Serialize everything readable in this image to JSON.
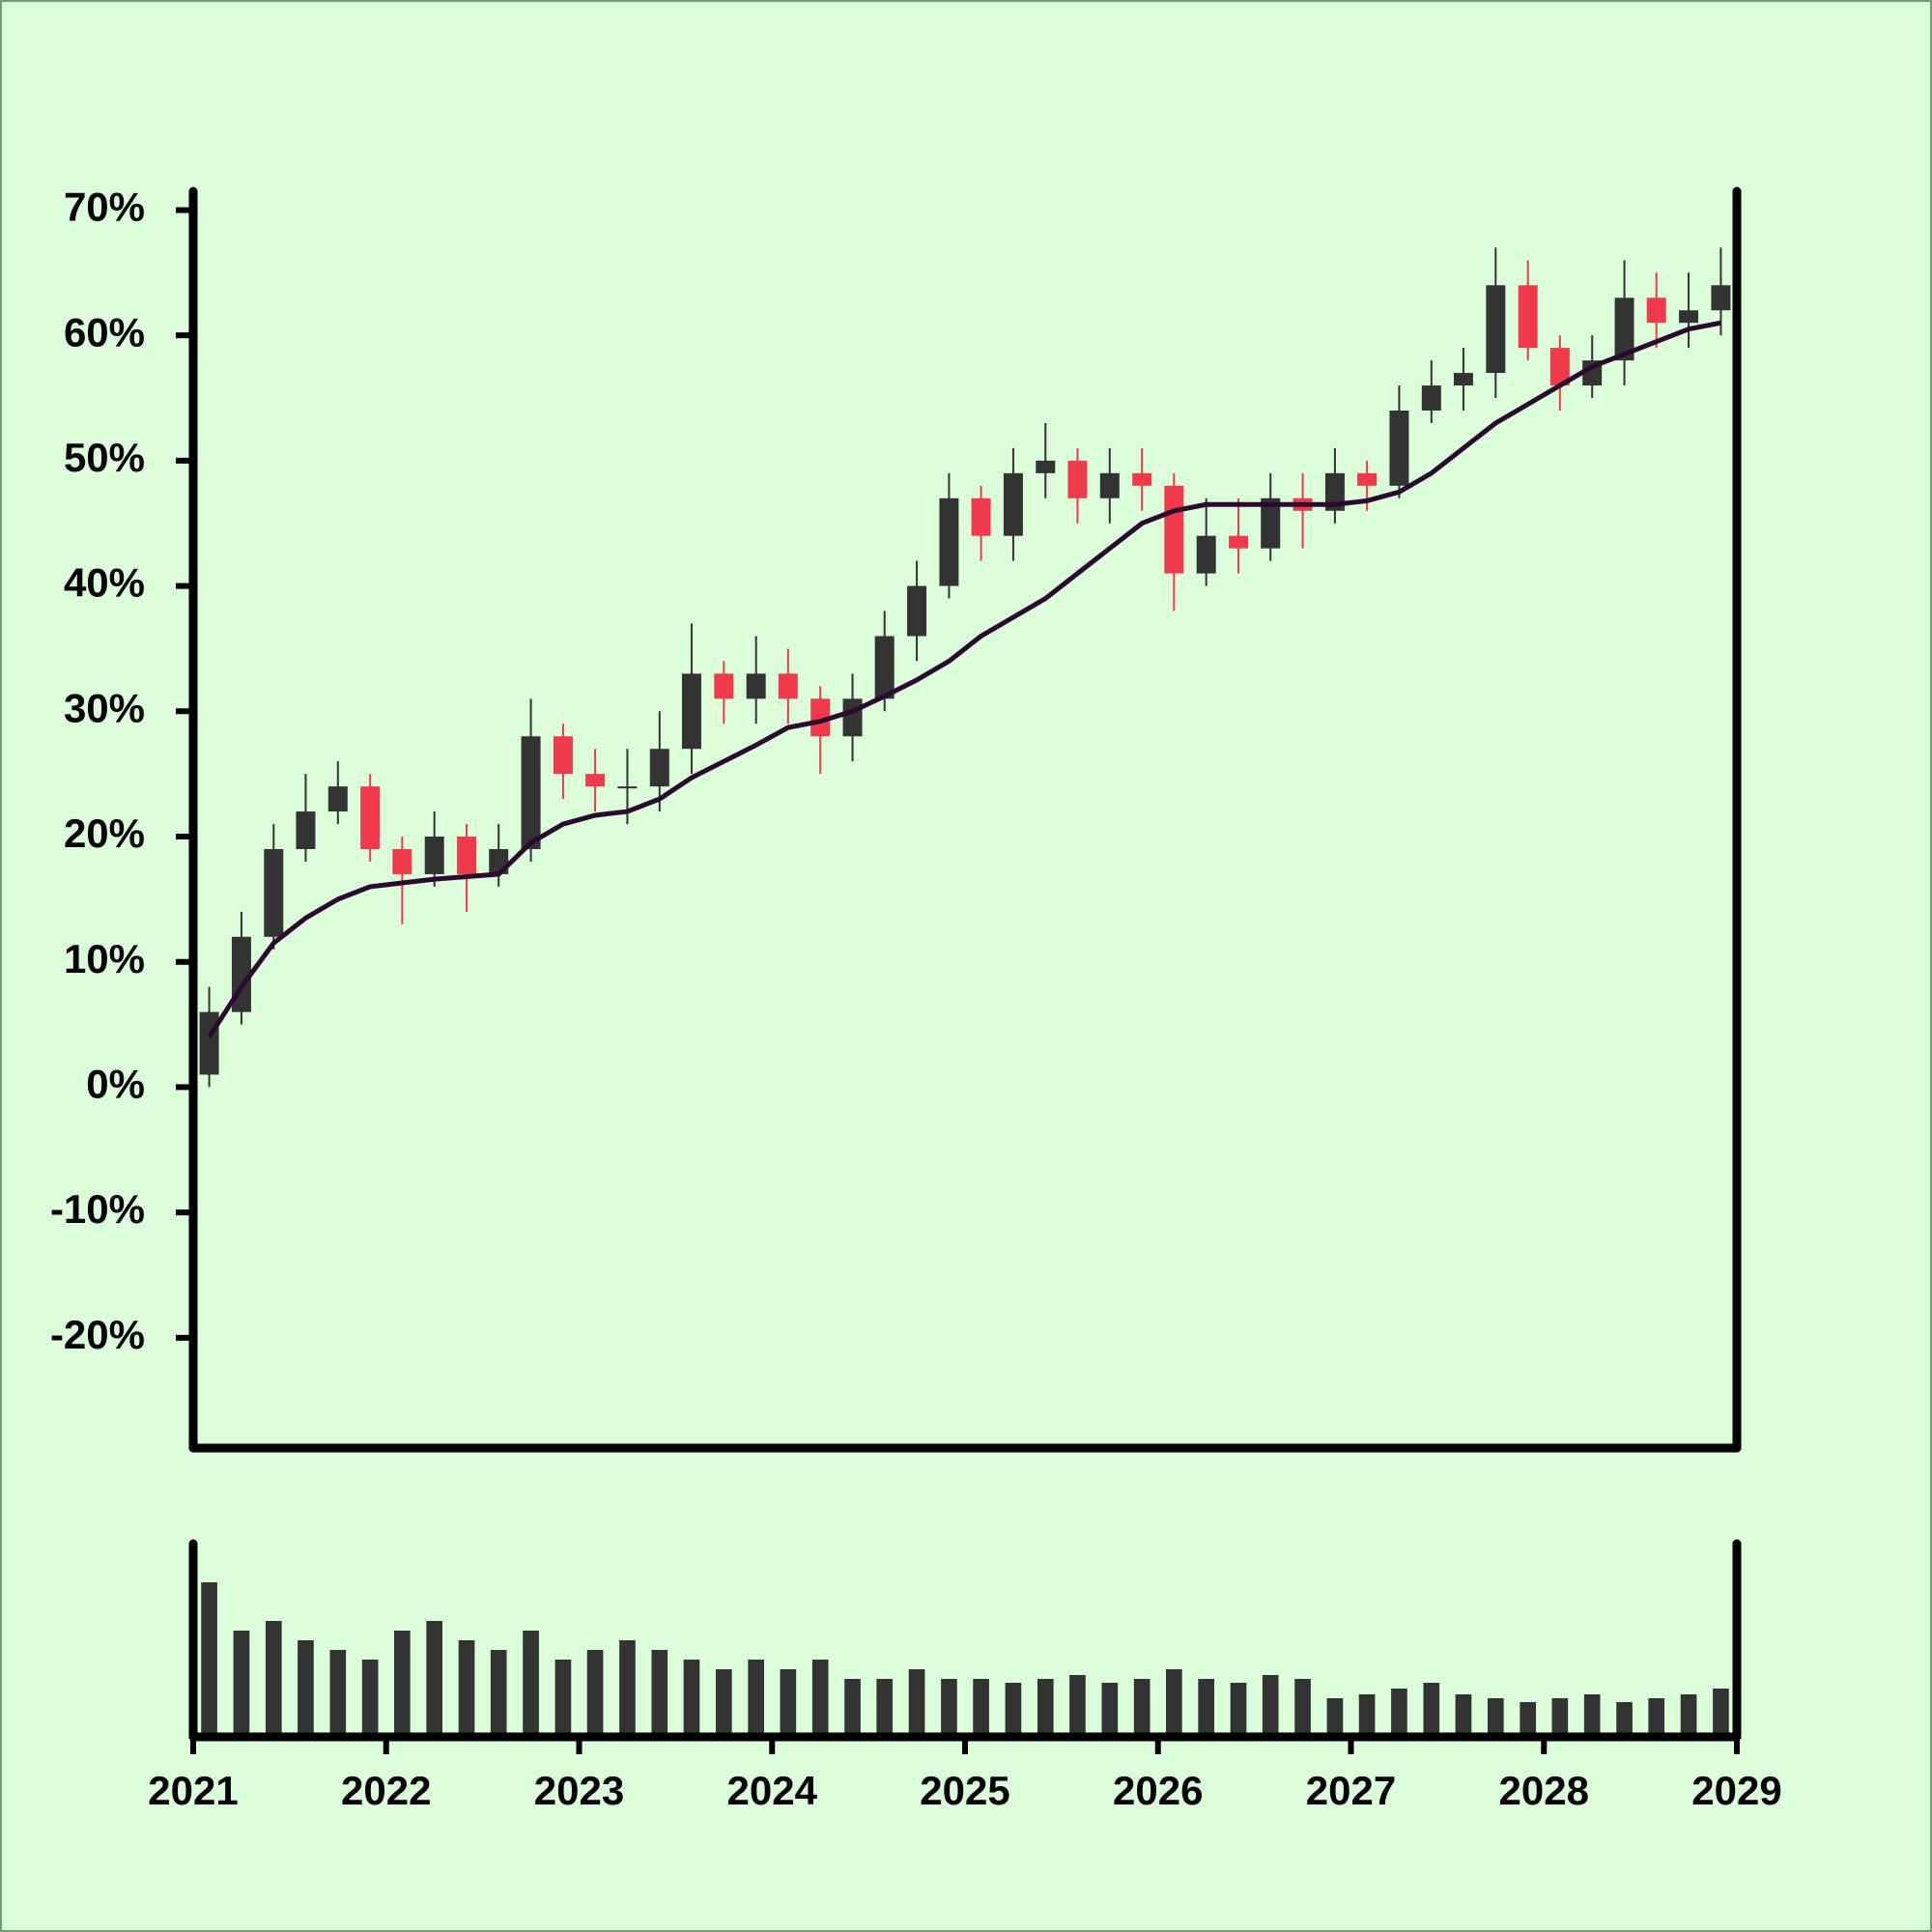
{
  "chart_data": {
    "type": "candlestick",
    "x": [
      2021.083,
      2021.25,
      2021.417,
      2021.583,
      2021.75,
      2021.917,
      2022.083,
      2022.25,
      2022.417,
      2022.583,
      2022.75,
      2022.917,
      2023.083,
      2023.25,
      2023.417,
      2023.583,
      2023.75,
      2023.917,
      2024.083,
      2024.25,
      2024.417,
      2024.583,
      2024.75,
      2024.917,
      2025.083,
      2025.25,
      2025.417,
      2025.583,
      2025.75,
      2025.917,
      2026.083,
      2026.25,
      2026.417,
      2026.583,
      2026.75,
      2026.917,
      2027.083,
      2027.25,
      2027.417,
      2027.583,
      2027.75,
      2027.917,
      2028.083,
      2028.25,
      2028.417,
      2028.583,
      2028.75,
      2028.917
    ],
    "open": [
      1,
      6,
      12,
      19,
      22,
      24,
      19,
      17,
      20,
      17,
      19,
      28,
      25,
      24,
      24,
      27,
      33,
      31,
      33,
      31,
      28,
      31,
      36,
      40,
      47,
      44,
      49,
      50,
      47,
      49,
      48,
      41,
      44,
      43,
      47,
      46,
      49,
      48,
      54,
      56,
      57,
      64,
      59,
      56,
      58,
      63,
      61,
      62
    ],
    "high": [
      8,
      14,
      21,
      25,
      26,
      25,
      20,
      22,
      21,
      21,
      31,
      29,
      27,
      27,
      30,
      37,
      34,
      36,
      35,
      32,
      33,
      38,
      42,
      49,
      48,
      51,
      53,
      51,
      51,
      51,
      49,
      47,
      47,
      49,
      49,
      51,
      50,
      56,
      58,
      59,
      67,
      66,
      60,
      60,
      66,
      65,
      65,
      67
    ],
    "low": [
      0,
      5,
      11,
      18,
      21,
      18,
      13,
      16,
      14,
      16,
      18,
      23,
      22,
      21,
      22,
      25,
      29,
      29,
      29,
      25,
      26,
      30,
      34,
      39,
      42,
      42,
      47,
      45,
      45,
      46,
      38,
      40,
      41,
      42,
      43,
      45,
      46,
      47,
      53,
      54,
      55,
      58,
      54,
      55,
      56,
      59,
      59,
      60
    ],
    "close": [
      6,
      12,
      19,
      22,
      24,
      19,
      17,
      20,
      17,
      19,
      28,
      25,
      24,
      24,
      27,
      33,
      31,
      33,
      31,
      28,
      31,
      36,
      40,
      47,
      44,
      49,
      50,
      47,
      49,
      48,
      41,
      44,
      43,
      47,
      46,
      49,
      48,
      54,
      56,
      57,
      64,
      59,
      56,
      58,
      63,
      61,
      62,
      64
    ],
    "up_color": "#333333",
    "down_color": "#f03a4c",
    "moving_average": {
      "color": "#2a0a2e",
      "values": [
        4,
        8,
        11.5,
        13.5,
        15,
        16,
        16.3,
        16.6,
        16.8,
        17,
        19.5,
        21,
        21.7,
        22,
        23,
        24.7,
        26,
        27.3,
        28.7,
        29.2,
        30,
        31.2,
        32.5,
        34,
        36,
        37.5,
        39,
        41,
        43,
        45,
        46,
        46.5,
        46.5,
        46.5,
        46.5,
        46.5,
        46.8,
        47.5,
        49,
        51,
        53,
        54.5,
        56,
        57.5,
        58.5,
        59.5,
        60.5,
        61
      ]
    },
    "volume": {
      "color": "#333333",
      "ylim": [
        0,
        100
      ],
      "values": [
        80,
        55,
        60,
        50,
        45,
        40,
        55,
        60,
        50,
        45,
        55,
        40,
        45,
        50,
        45,
        40,
        35,
        40,
        35,
        40,
        30,
        30,
        35,
        30,
        30,
        28,
        30,
        32,
        28,
        30,
        35,
        30,
        28,
        32,
        30,
        20,
        22,
        25,
        28,
        22,
        20,
        18,
        20,
        22,
        18,
        20,
        22,
        25
      ]
    },
    "xlim": [
      2021,
      2029
    ],
    "xticks": [
      2021,
      2022,
      2023,
      2024,
      2025,
      2026,
      2027,
      2028,
      2029
    ],
    "ylim": [
      -28.8,
      71.5
    ],
    "yticks": [
      {
        "value": -20,
        "label": "-20%"
      },
      {
        "value": -10,
        "label": "-10%"
      },
      {
        "value": 0,
        "label": "0%"
      },
      {
        "value": 10,
        "label": "10%"
      },
      {
        "value": 20,
        "label": "20%"
      },
      {
        "value": 30,
        "label": "30%"
      },
      {
        "value": 40,
        "label": "40%"
      },
      {
        "value": 50,
        "label": "50%"
      },
      {
        "value": 60,
        "label": "60%"
      },
      {
        "value": 70,
        "label": "70%"
      }
    ]
  }
}
